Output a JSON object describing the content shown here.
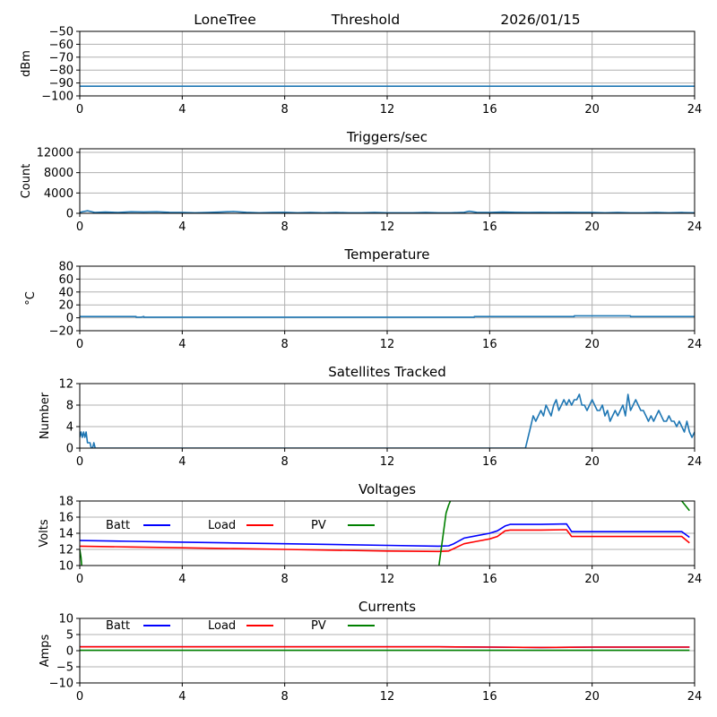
{
  "header": {
    "station": "LoneTree",
    "mode": "Threshold",
    "date": "2026/01/15"
  },
  "chart_data": [
    {
      "id": "threshold",
      "type": "line",
      "title": "",
      "xlabel": "",
      "ylabel": "dBm",
      "xlim": [
        0,
        24
      ],
      "ylim": [
        -100,
        -50
      ],
      "xticks": [
        "0",
        "4",
        "8",
        "12",
        "16",
        "20",
        "24"
      ],
      "yticks": [
        "−50",
        "−60",
        "−70",
        "−80",
        "−90",
        "−100"
      ],
      "ytick_values": [
        -50,
        -60,
        -70,
        -80,
        -90,
        -100
      ],
      "grid": true,
      "series": [
        {
          "name": "threshold",
          "color": "#1f77b4",
          "x": [
            0,
            24
          ],
          "y": [
            -92.5,
            -92.5
          ]
        }
      ]
    },
    {
      "id": "triggers",
      "type": "line",
      "title": "Triggers/sec",
      "xlabel": "",
      "ylabel": "Count",
      "xlim": [
        0,
        24
      ],
      "ylim": [
        0,
        12700
      ],
      "xticks": [
        "0",
        "4",
        "8",
        "12",
        "16",
        "20",
        "24"
      ],
      "yticks": [
        "12000",
        "8000",
        "4000",
        "0"
      ],
      "ytick_values": [
        12000,
        8000,
        4000,
        0
      ],
      "grid": true,
      "series": [
        {
          "name": "triggers",
          "color": "#1f77b4",
          "x": [
            0,
            0.3,
            0.6,
            1,
            1.5,
            2,
            2.5,
            3,
            3.5,
            4,
            4.5,
            5,
            5.5,
            6,
            6.5,
            7,
            7.5,
            8,
            8.5,
            9,
            9.5,
            10,
            10.5,
            11,
            11.5,
            12,
            12.5,
            13,
            13.5,
            14,
            14.5,
            15,
            15.2,
            15.5,
            16,
            16.5,
            17,
            17.5,
            18,
            18.5,
            19,
            19.5,
            20,
            20.5,
            21,
            21.5,
            22,
            22.5,
            23,
            23.5,
            24
          ],
          "y": [
            200,
            500,
            150,
            250,
            150,
            300,
            250,
            300,
            200,
            150,
            100,
            150,
            250,
            350,
            200,
            100,
            150,
            200,
            100,
            150,
            100,
            150,
            100,
            100,
            150,
            100,
            100,
            100,
            150,
            100,
            100,
            200,
            400,
            200,
            150,
            250,
            200,
            150,
            200,
            150,
            200,
            150,
            150,
            100,
            150,
            100,
            100,
            150,
            100,
            150,
            100
          ]
        }
      ]
    },
    {
      "id": "temperature",
      "type": "line",
      "title": "Temperature",
      "xlabel": "",
      "ylabel": "°C",
      "xlim": [
        0,
        24
      ],
      "ylim": [
        -20,
        80
      ],
      "xticks": [
        "0",
        "4",
        "8",
        "12",
        "16",
        "20",
        "24"
      ],
      "yticks": [
        "80",
        "60",
        "40",
        "20",
        "0",
        "−20"
      ],
      "ytick_values": [
        80,
        60,
        40,
        20,
        0,
        -20
      ],
      "grid": true,
      "series": [
        {
          "name": "temperature",
          "color": "#1f77b4",
          "x": [
            0,
            2.2,
            2.2,
            2.4,
            2.5,
            2.5,
            15.4,
            15.4,
            19.3,
            19.3,
            21.5,
            21.5,
            24
          ],
          "y": [
            2,
            2,
            1,
            1,
            2,
            1,
            1,
            2,
            2,
            3,
            3,
            2,
            2
          ]
        }
      ]
    },
    {
      "id": "satellites",
      "type": "line",
      "title": "Satellites Tracked",
      "xlabel": "",
      "ylabel": "Number",
      "xlim": [
        0,
        24
      ],
      "ylim": [
        0,
        12
      ],
      "xticks": [
        "0",
        "4",
        "8",
        "12",
        "16",
        "20",
        "24"
      ],
      "yticks": [
        "12",
        "8",
        "4",
        "0"
      ],
      "ytick_values": [
        12,
        8,
        4,
        0
      ],
      "grid": true,
      "series": [
        {
          "name": "satellites",
          "color": "#1f77b4",
          "x": [
            0,
            0.05,
            0.1,
            0.15,
            0.2,
            0.25,
            0.3,
            0.35,
            0.4,
            0.45,
            0.5,
            0.55,
            0.6,
            0.65,
            17.4,
            17.5,
            17.6,
            17.7,
            17.8,
            17.9,
            18.0,
            18.1,
            18.2,
            18.3,
            18.4,
            18.5,
            18.6,
            18.7,
            18.8,
            18.9,
            19.0,
            19.1,
            19.2,
            19.3,
            19.4,
            19.5,
            19.6,
            19.7,
            19.8,
            19.9,
            20.0,
            20.1,
            20.2,
            20.3,
            20.4,
            20.5,
            20.6,
            20.7,
            20.8,
            20.9,
            21.0,
            21.1,
            21.2,
            21.3,
            21.4,
            21.5,
            21.6,
            21.7,
            21.8,
            21.9,
            22.0,
            22.1,
            22.2,
            22.3,
            22.4,
            22.5,
            22.6,
            22.7,
            22.8,
            22.9,
            23.0,
            23.1,
            23.2,
            23.3,
            23.4,
            23.5,
            23.6,
            23.7,
            23.8,
            23.9,
            24.0
          ],
          "y": [
            2,
            3,
            2,
            3,
            2,
            3,
            1,
            1,
            1,
            0,
            0,
            1,
            0,
            0,
            0,
            2,
            4,
            6,
            5,
            6,
            7,
            6,
            8,
            7,
            6,
            8,
            9,
            7,
            8,
            9,
            8,
            9,
            8,
            9,
            9,
            10,
            8,
            8,
            7,
            8,
            9,
            8,
            7,
            7,
            8,
            6,
            7,
            5,
            6,
            7,
            6,
            7,
            8,
            6,
            10,
            7,
            8,
            9,
            8,
            7,
            7,
            6,
            5,
            6,
            5,
            6,
            7,
            6,
            5,
            5,
            6,
            5,
            5,
            4,
            5,
            4,
            3,
            5,
            3,
            2,
            3
          ]
        }
      ]
    },
    {
      "id": "voltages",
      "type": "line",
      "title": "Voltages",
      "xlabel": "",
      "ylabel": "Volts",
      "xlim": [
        0,
        24
      ],
      "ylim": [
        10,
        18
      ],
      "xticks": [
        "0",
        "4",
        "8",
        "12",
        "16",
        "20",
        "24"
      ],
      "yticks": [
        "18",
        "16",
        "14",
        "12",
        "10"
      ],
      "ytick_values": [
        18,
        16,
        14,
        12,
        10
      ],
      "grid": true,
      "legend": {
        "placement": "top-left-inline"
      },
      "series": [
        {
          "name": "Batt",
          "color": "#0000ff",
          "x": [
            0,
            2,
            4,
            6,
            8,
            10,
            12,
            14,
            14.4,
            14.6,
            15,
            15.5,
            16,
            16.3,
            16.6,
            16.8,
            17,
            18,
            19,
            19.2,
            20,
            22,
            23.5,
            23.8
          ],
          "y": [
            13.1,
            13.0,
            12.9,
            12.8,
            12.7,
            12.6,
            12.5,
            12.4,
            12.45,
            12.7,
            13.4,
            13.7,
            14.0,
            14.3,
            14.9,
            15.1,
            15.1,
            15.1,
            15.15,
            14.2,
            14.2,
            14.2,
            14.2,
            13.5
          ]
        },
        {
          "name": "Load",
          "color": "#ff0000",
          "x": [
            0,
            2,
            4,
            6,
            8,
            10,
            12,
            14,
            14.4,
            14.6,
            15,
            15.5,
            16,
            16.3,
            16.6,
            16.8,
            17,
            18,
            19,
            19.2,
            20,
            22,
            23.5,
            23.8
          ],
          "y": [
            12.4,
            12.3,
            12.2,
            12.1,
            12.0,
            11.9,
            11.8,
            11.75,
            11.8,
            12.1,
            12.7,
            13.0,
            13.3,
            13.6,
            14.3,
            14.4,
            14.4,
            14.4,
            14.45,
            13.6,
            13.6,
            13.6,
            13.6,
            12.8
          ]
        },
        {
          "name": "PV",
          "color": "#008000",
          "x": [
            0,
            0.05,
            0.1,
            14.0,
            14.3,
            14.4,
            14.6,
            23.2,
            23.5,
            23.8
          ],
          "y": [
            12,
            11,
            9,
            9.5,
            16.5,
            17.5,
            19,
            19,
            18,
            16.8
          ]
        }
      ]
    },
    {
      "id": "currents",
      "type": "line",
      "title": "Currents",
      "xlabel": "",
      "ylabel": "Amps",
      "xlim": [
        0,
        24
      ],
      "ylim": [
        -10,
        10
      ],
      "xticks": [
        "0",
        "4",
        "8",
        "12",
        "16",
        "20",
        "24"
      ],
      "yticks": [
        "10",
        "5",
        "0",
        "−5",
        "−10"
      ],
      "ytick_values": [
        10,
        5,
        0,
        -5,
        -10
      ],
      "grid": true,
      "legend": {
        "placement": "top-left-inline"
      },
      "series": [
        {
          "name": "Batt",
          "color": "#0000ff",
          "x": [
            0,
            8,
            14,
            16,
            18,
            20,
            23.8
          ],
          "y": [
            1.2,
            1.2,
            1.2,
            1.1,
            1.0,
            1.1,
            1.1
          ]
        },
        {
          "name": "Load",
          "color": "#ff0000",
          "x": [
            0,
            8,
            14,
            16,
            18,
            20,
            23.8
          ],
          "y": [
            1.2,
            1.2,
            1.2,
            1.1,
            1.0,
            1.1,
            1.1
          ]
        },
        {
          "name": "PV",
          "color": "#008000",
          "x": [
            0,
            23.8
          ],
          "y": [
            0.1,
            0.1
          ]
        }
      ]
    }
  ]
}
